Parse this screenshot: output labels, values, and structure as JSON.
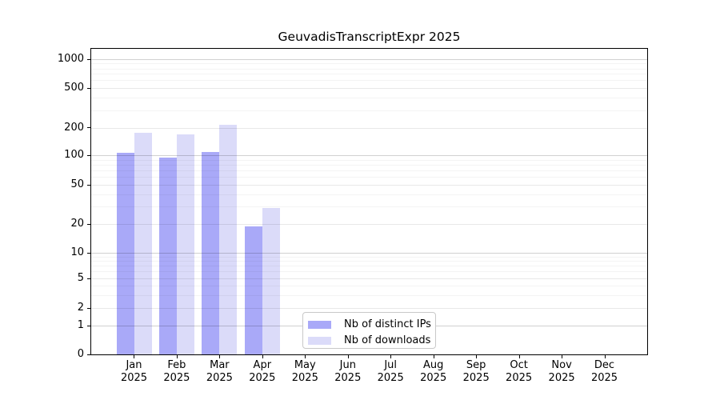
{
  "chart_data": {
    "type": "bar",
    "title": "GeuvadisTranscriptExpr 2025",
    "xlabel": "",
    "ylabel": "",
    "y_scale": "log-like (0, 1, 2, 5, 10, 20, 50, 100, 200, 500, 1000)",
    "grid": true,
    "legend_position": "inside bottom-center",
    "categories": [
      {
        "month": "Jan",
        "year": "2025"
      },
      {
        "month": "Feb",
        "year": "2025"
      },
      {
        "month": "Mar",
        "year": "2025"
      },
      {
        "month": "Apr",
        "year": "2025"
      },
      {
        "month": "May",
        "year": "2025"
      },
      {
        "month": "Jun",
        "year": "2025"
      },
      {
        "month": "Jul",
        "year": "2025"
      },
      {
        "month": "Aug",
        "year": "2025"
      },
      {
        "month": "Sep",
        "year": "2025"
      },
      {
        "month": "Oct",
        "year": "2025"
      },
      {
        "month": "Nov",
        "year": "2025"
      },
      {
        "month": "Dec",
        "year": "2025"
      }
    ],
    "yticks": [
      0,
      1,
      2,
      5,
      10,
      20,
      50,
      100,
      200,
      500,
      1000
    ],
    "series": [
      {
        "name": "Nb of distinct IPs",
        "color": "#a9a9f8",
        "values": [
          107,
          95,
          110,
          19,
          null,
          null,
          null,
          null,
          null,
          null,
          null,
          null
        ]
      },
      {
        "name": "Nb of downloads",
        "color": "#dbdbf9",
        "values": [
          176,
          170,
          213,
          29,
          null,
          null,
          null,
          null,
          null,
          null,
          null,
          null
        ]
      }
    ]
  }
}
